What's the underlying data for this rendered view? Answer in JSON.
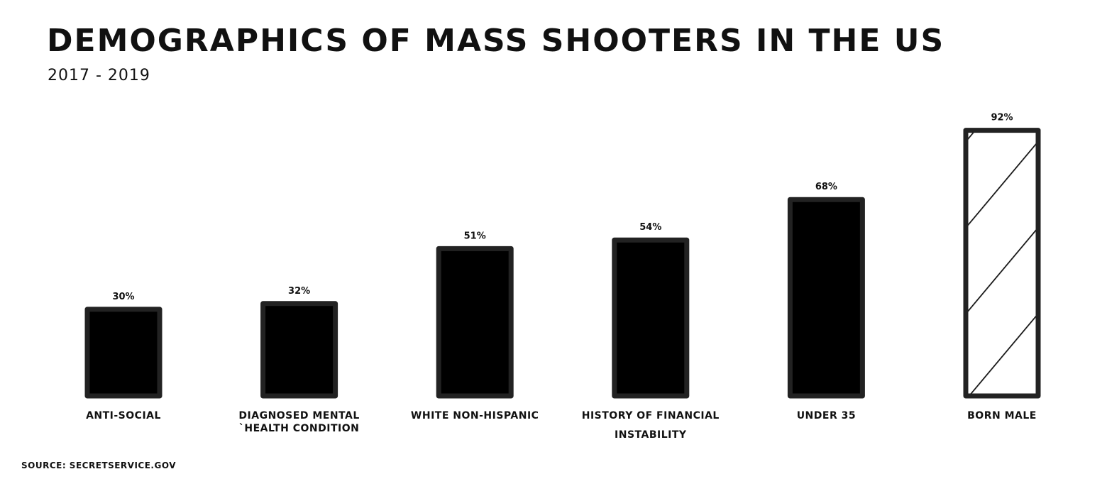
{
  "title": "DEMOGRAPHICS OF MASS SHOOTERS IN THE US",
  "subtitle": "2017 - 2019",
  "source": "SOURCE: SECRETSERVICE.GOV",
  "colors": {
    "bar_fill": "#000000",
    "bar_border": "#222222",
    "highlight_fill": "#ffffff"
  },
  "chart_data": {
    "type": "bar",
    "title": "DEMOGRAPHICS OF MASS SHOOTERS IN THE US",
    "subtitle": "2017 - 2019",
    "categories": [
      [
        "ANTI-SOCIAL"
      ],
      [
        "DIAGNOSED MENTAL",
        "`HEALTH CONDITION"
      ],
      [
        "WHITE NON-HISPANIC"
      ],
      [
        "HISTORY OF FINANCIAL",
        "INSTABILITY"
      ],
      [
        "UNDER 35"
      ],
      [
        "BORN MALE"
      ]
    ],
    "values": [
      30,
      32,
      51,
      54,
      68,
      92
    ],
    "value_labels": [
      "30%",
      "32%",
      "51%",
      "54%",
      "68%",
      "92%"
    ],
    "highlight": [
      false,
      false,
      false,
      false,
      false,
      true
    ],
    "ylim": [
      0,
      100
    ],
    "grid": false,
    "xlabel": "",
    "ylabel": ""
  }
}
